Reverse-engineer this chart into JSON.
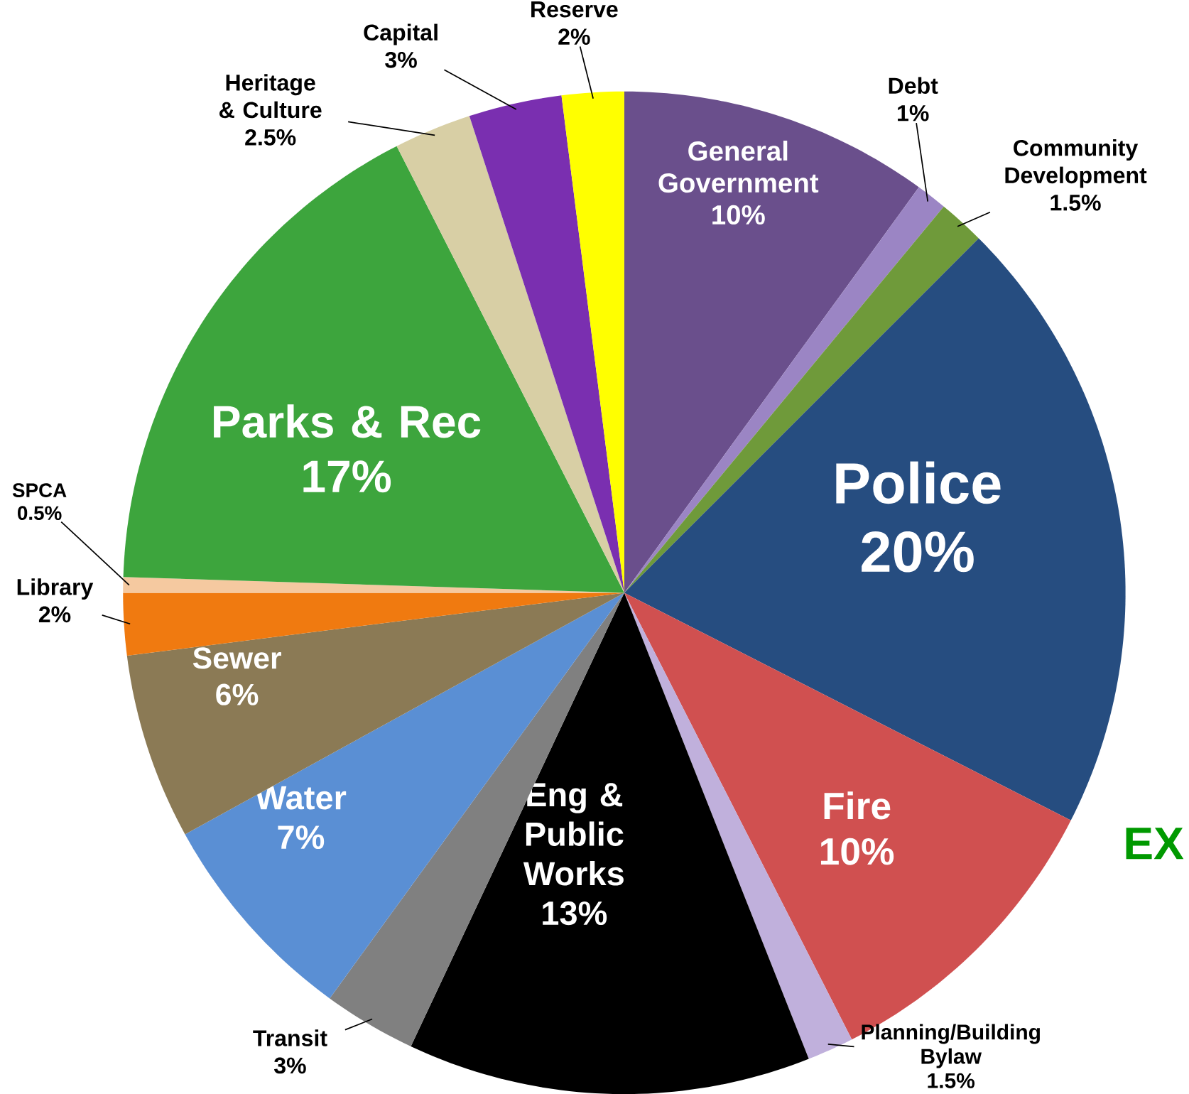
{
  "chart_data": {
    "type": "pie",
    "categories": [
      "General Government",
      "Debt",
      "Community Development",
      "Police",
      "Fire",
      "Planning/Building Bylaw",
      "Eng & Public Works",
      "Transit",
      "Water",
      "Sewer",
      "Library",
      "SPCA",
      "Parks & Rec",
      "Heritage & Culture",
      "Capital",
      "Reserve"
    ],
    "values": [
      10,
      1,
      1.5,
      20,
      10,
      1.5,
      13,
      3,
      7,
      6,
      2,
      0.5,
      17,
      2.5,
      3,
      2
    ],
    "value_labels": [
      "10%",
      "1%",
      "1.5%",
      "20%",
      "10%",
      "1.5%",
      "13%",
      "3%",
      "7%",
      "6%",
      "2%",
      "0.5%",
      "17%",
      "2.5%",
      "3%",
      "2%"
    ],
    "colors": [
      "#6a4f8c",
      "#9b85c4",
      "#6f9a3a",
      "#264d80",
      "#d05050",
      "#c0b0dc",
      "#000000",
      "#808080",
      "#5a8fd4",
      "#8b7a55",
      "#f07a10",
      "#f5c9a0",
      "#3da53d",
      "#d8cfa5",
      "#7a2fb0",
      "#ffff00"
    ],
    "annotations": [
      "EX"
    ]
  }
}
